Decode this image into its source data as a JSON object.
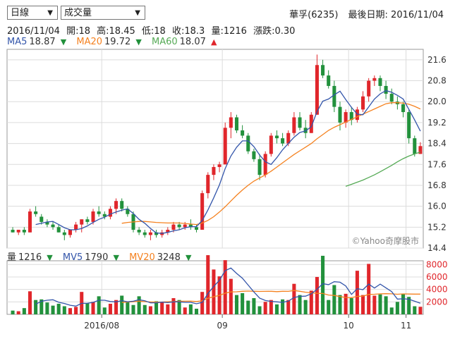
{
  "controls": {
    "period_select": "日線",
    "indicator_select": "成交量",
    "dropdown_arrow": "▼"
  },
  "header": {
    "stock": "華孚(6235)",
    "last_date_label": "最後日期: 2016/11/04"
  },
  "info": {
    "date": "2016/11/04",
    "open": "開:18",
    "high": "高:18.45",
    "low": "低:18",
    "close": "收:18.3",
    "volume": "量:1216",
    "change": "漲跌:0.30"
  },
  "ma_legend": {
    "ma5_label": "MA5",
    "ma5_value": "18.87",
    "ma5_dir": "▼",
    "ma20_label": "MA20",
    "ma20_value": "19.72",
    "ma20_dir": "▼",
    "ma60_label": "MA60",
    "ma60_value": "18.07",
    "ma60_dir": "▲"
  },
  "vol_legend": {
    "vol_label": "量",
    "vol_value": "1216",
    "vol_dir": "▼",
    "mv5_label": "MV5",
    "mv5_value": "1790",
    "mv5_dir": "▼",
    "mv20_label": "MV20",
    "mv20_value": "3248",
    "mv20_dir": "▼"
  },
  "watermark": "©Yahoo奇摩股市",
  "colors": {
    "up": "#e0262b",
    "down": "#22913c",
    "ma5": "#3355aa",
    "ma20": "#f58220",
    "ma60": "#55aa55",
    "grid": "#dcdcdc"
  },
  "chart_data": {
    "type": "candlestick",
    "price_axis": {
      "ticks": [
        "21.6",
        "20.8",
        "20.0",
        "19.2",
        "18.4",
        "17.6",
        "16.8",
        "16.0",
        "15.2",
        "14.4"
      ],
      "ylim": [
        14.4,
        22.0
      ]
    },
    "volume_axis": {
      "ticks": [
        "8000",
        "6000",
        "4000",
        "2000"
      ],
      "ylim": [
        0,
        8600
      ]
    },
    "x_labels": [
      "2016/08",
      "09",
      "10",
      "11"
    ],
    "candles": [
      [
        15.1,
        15.2,
        15.0,
        15.0
      ],
      [
        15.0,
        15.1,
        14.9,
        15.1
      ],
      [
        15.1,
        15.2,
        14.9,
        15.0
      ],
      [
        15.0,
        15.9,
        15.0,
        15.8
      ],
      [
        15.8,
        16.0,
        15.6,
        15.7
      ],
      [
        15.6,
        15.7,
        15.3,
        15.4
      ],
      [
        15.4,
        15.5,
        15.2,
        15.3
      ],
      [
        15.3,
        15.4,
        15.1,
        15.2
      ],
      [
        15.2,
        15.3,
        15.0,
        15.0
      ],
      [
        15.0,
        15.1,
        14.7,
        14.9
      ],
      [
        14.9,
        15.1,
        14.8,
        15.1
      ],
      [
        15.1,
        15.4,
        15.0,
        15.3
      ],
      [
        15.3,
        15.5,
        15.0,
        15.5
      ],
      [
        15.5,
        15.6,
        15.3,
        15.4
      ],
      [
        15.4,
        15.9,
        15.3,
        15.8
      ],
      [
        15.8,
        16.0,
        15.6,
        15.7
      ],
      [
        15.7,
        15.8,
        15.5,
        15.6
      ],
      [
        15.6,
        16.0,
        15.5,
        15.9
      ],
      [
        15.9,
        16.3,
        15.7,
        16.2
      ],
      [
        16.2,
        16.3,
        15.8,
        15.9
      ],
      [
        15.9,
        16.0,
        15.6,
        15.7
      ],
      [
        15.7,
        15.8,
        15.0,
        15.1
      ],
      [
        15.1,
        15.2,
        14.9,
        15.0
      ],
      [
        15.0,
        15.1,
        14.8,
        14.9
      ],
      [
        14.9,
        15.1,
        14.7,
        15.0
      ],
      [
        15.0,
        15.1,
        14.8,
        14.9
      ],
      [
        14.9,
        15.1,
        14.8,
        15.0
      ],
      [
        15.0,
        15.2,
        14.9,
        15.1
      ],
      [
        15.1,
        15.4,
        15.0,
        15.3
      ],
      [
        15.3,
        15.4,
        15.1,
        15.2
      ],
      [
        15.2,
        15.4,
        15.1,
        15.3
      ],
      [
        15.3,
        15.5,
        15.1,
        15.2
      ],
      [
        15.2,
        15.3,
        15.0,
        15.1
      ],
      [
        15.1,
        16.6,
        15.1,
        16.5
      ],
      [
        16.5,
        17.3,
        16.3,
        17.2
      ],
      [
        17.2,
        17.6,
        17.0,
        17.5
      ],
      [
        17.5,
        17.7,
        17.3,
        17.6
      ],
      [
        17.6,
        19.2,
        17.6,
        19.0
      ],
      [
        19.0,
        19.6,
        18.6,
        19.4
      ],
      [
        19.4,
        19.5,
        18.8,
        18.9
      ],
      [
        18.9,
        19.1,
        18.6,
        18.7
      ],
      [
        18.7,
        18.8,
        18.0,
        18.1
      ],
      [
        18.1,
        18.2,
        17.7,
        17.8
      ],
      [
        17.8,
        18.0,
        17.0,
        17.2
      ],
      [
        17.2,
        18.1,
        17.1,
        18.0
      ],
      [
        18.0,
        18.8,
        17.9,
        18.7
      ],
      [
        18.7,
        18.9,
        18.4,
        18.6
      ],
      [
        18.6,
        18.8,
        18.3,
        18.4
      ],
      [
        18.4,
        18.9,
        18.3,
        18.8
      ],
      [
        18.8,
        19.6,
        18.7,
        19.4
      ],
      [
        19.4,
        19.6,
        18.9,
        19.0
      ],
      [
        19.0,
        19.3,
        18.6,
        18.8
      ],
      [
        18.8,
        19.6,
        18.8,
        19.5
      ],
      [
        19.5,
        21.8,
        19.5,
        21.4
      ],
      [
        21.4,
        21.6,
        20.9,
        21.0
      ],
      [
        21.0,
        21.2,
        20.5,
        20.6
      ],
      [
        20.6,
        20.8,
        19.6,
        19.8
      ],
      [
        19.8,
        20.0,
        18.9,
        19.2
      ],
      [
        19.2,
        19.7,
        19.0,
        19.6
      ],
      [
        19.6,
        19.8,
        19.1,
        19.3
      ],
      [
        19.3,
        19.8,
        19.2,
        19.7
      ],
      [
        19.7,
        20.4,
        19.6,
        20.2
      ],
      [
        20.2,
        20.9,
        20.0,
        20.8
      ],
      [
        20.8,
        21.0,
        20.6,
        20.9
      ],
      [
        20.9,
        21.0,
        20.4,
        20.6
      ],
      [
        20.6,
        20.8,
        20.1,
        20.3
      ],
      [
        20.3,
        20.5,
        19.9,
        20.0
      ],
      [
        20.0,
        20.2,
        19.7,
        19.9
      ],
      [
        19.9,
        20.0,
        19.4,
        19.6
      ],
      [
        19.6,
        19.7,
        18.4,
        18.6
      ],
      [
        18.6,
        18.7,
        17.9,
        18.0
      ],
      [
        18.0,
        18.45,
        18.0,
        18.3
      ]
    ],
    "volume": [
      600,
      500,
      1000,
      3700,
      2300,
      2400,
      1900,
      1400,
      1700,
      1300,
      1000,
      1200,
      3600,
      1800,
      2000,
      2900,
      1100,
      1700,
      2300,
      3000,
      2000,
      1500,
      2900,
      1500,
      1300,
      2100,
      2000,
      1600,
      2600,
      2300,
      1100,
      1600,
      900,
      3600,
      9500,
      7200,
      6100,
      8700,
      5700,
      3100,
      3400,
      2200,
      2600,
      1300,
      2000,
      2300,
      1600,
      2400,
      2300,
      4900,
      3100,
      2300,
      3800,
      6000,
      9400,
      2300,
      4700,
      3100,
      3300,
      2600,
      7000,
      3100,
      8100,
      3000,
      3200,
      2900,
      1100,
      2000,
      3300,
      2800,
      1300,
      1216
    ],
    "ma5": [
      null,
      null,
      null,
      null,
      15.3,
      15.35,
      15.4,
      15.42,
      15.3,
      15.18,
      15.1,
      15.1,
      15.15,
      15.25,
      15.38,
      15.5,
      15.58,
      15.7,
      15.78,
      15.85,
      15.9,
      15.72,
      15.5,
      15.35,
      15.15,
      14.98,
      14.96,
      15.0,
      15.06,
      15.1,
      15.18,
      15.22,
      15.22,
      15.46,
      15.86,
      16.32,
      16.82,
      17.44,
      17.92,
      18.26,
      18.5,
      18.5,
      18.28,
      17.96,
      17.7,
      17.6,
      17.86,
      18.16,
      18.4,
      18.64,
      18.82,
      18.88,
      19.04,
      19.62,
      20.02,
      20.1,
      20.26,
      20.4,
      20.08,
      19.78,
      19.52,
      19.5,
      19.8,
      20.1,
      20.3,
      20.42,
      20.36,
      20.24,
      20.1,
      19.7,
      19.3,
      18.87
    ],
    "ma20": [
      null,
      null,
      null,
      null,
      null,
      null,
      null,
      null,
      null,
      null,
      null,
      null,
      null,
      null,
      null,
      null,
      null,
      null,
      null,
      15.35,
      15.38,
      15.4,
      15.42,
      15.42,
      15.4,
      15.38,
      15.37,
      15.36,
      15.36,
      15.36,
      15.34,
      15.32,
      15.3,
      15.36,
      15.46,
      15.6,
      15.78,
      15.98,
      16.2,
      16.42,
      16.62,
      16.8,
      16.96,
      17.08,
      17.2,
      17.34,
      17.5,
      17.66,
      17.82,
      17.98,
      18.12,
      18.26,
      18.4,
      18.58,
      18.74,
      18.9,
      19.02,
      19.12,
      19.22,
      19.32,
      19.42,
      19.52,
      19.62,
      19.72,
      19.82,
      19.92,
      19.96,
      19.96,
      19.94,
      19.9,
      19.82,
      19.72
    ],
    "ma60": [
      null,
      null,
      null,
      null,
      null,
      null,
      null,
      null,
      null,
      null,
      null,
      null,
      null,
      null,
      null,
      null,
      null,
      null,
      null,
      null,
      null,
      null,
      null,
      null,
      null,
      null,
      null,
      null,
      null,
      null,
      null,
      null,
      null,
      null,
      null,
      null,
      null,
      null,
      null,
      null,
      null,
      null,
      null,
      null,
      null,
      null,
      null,
      null,
      null,
      null,
      null,
      null,
      null,
      null,
      null,
      null,
      null,
      null,
      16.76,
      16.84,
      16.92,
      17.0,
      17.1,
      17.2,
      17.32,
      17.44,
      17.56,
      17.7,
      17.82,
      17.92,
      18.0,
      18.07
    ],
    "mv5": [
      null,
      null,
      null,
      null,
      1620,
      2100,
      2260,
      2340,
      1940,
      1740,
      1460,
      1320,
      1760,
      1780,
      1920,
      2260,
      2260,
      2060,
      2000,
      2200,
      2020,
      2100,
      2340,
      2180,
      1840,
      1860,
      1960,
      1880,
      2000,
      2000,
      1920,
      1920,
      1700,
      1920,
      3340,
      4480,
      5460,
      7020,
      7440,
      6560,
      5800,
      4700,
      3600,
      2600,
      2220,
      2080,
      2000,
      1920,
      2120,
      2700,
      2880,
      2920,
      3300,
      4020,
      4920,
      4760,
      5240,
      5160,
      4560,
      3200,
      4120,
      3960,
      4860,
      4220,
      4860,
      4260,
      3660,
      2440,
      2500,
      2420,
      2100,
      1790
    ],
    "mv20": [
      null,
      null,
      null,
      null,
      null,
      null,
      null,
      null,
      null,
      null,
      null,
      null,
      null,
      null,
      null,
      null,
      null,
      null,
      null,
      1900,
      1970,
      2020,
      2120,
      2040,
      1990,
      1970,
      1980,
      2010,
      2050,
      2100,
      2100,
      2120,
      2060,
      2170,
      2570,
      2830,
      3040,
      3400,
      3600,
      3620,
      3700,
      3730,
      3700,
      3680,
      3690,
      3700,
      3640,
      3700,
      3690,
      3830,
      3700,
      3550,
      3450,
      3370,
      3350,
      3100,
      3030,
      2850,
      2710,
      2680,
      2880,
      2920,
      3200,
      3230,
      3290,
      3320,
      3290,
      3220,
      3280,
      3260,
      3250,
      3248
    ]
  }
}
